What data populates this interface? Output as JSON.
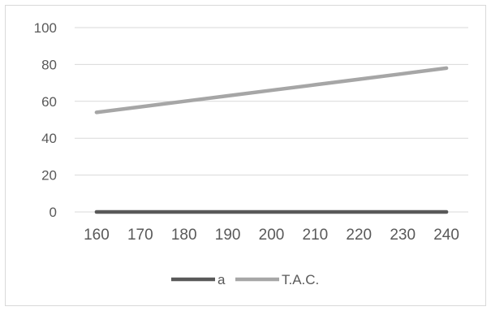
{
  "chart_data": {
    "type": "line",
    "x": [
      160,
      170,
      180,
      190,
      200,
      210,
      220,
      230,
      240
    ],
    "xtick_labels": [
      "160",
      "170",
      "180",
      "190",
      "200",
      "210",
      "220",
      "230",
      "240"
    ],
    "yticks": [
      0,
      20,
      40,
      60,
      80,
      100
    ],
    "ytick_labels": [
      "0",
      "20",
      "40",
      "60",
      "80",
      "100"
    ],
    "ylim": [
      0,
      100
    ],
    "grid": true,
    "legend_position": "bottom",
    "series": [
      {
        "name": "a",
        "color": "#595959",
        "values": [
          0,
          0,
          0,
          0,
          0,
          0,
          0,
          0,
          0
        ]
      },
      {
        "name": "T.A.C.",
        "color": "#a6a6a6",
        "values": [
          54,
          57,
          60,
          63,
          66,
          69,
          72,
          75,
          78
        ]
      }
    ]
  }
}
